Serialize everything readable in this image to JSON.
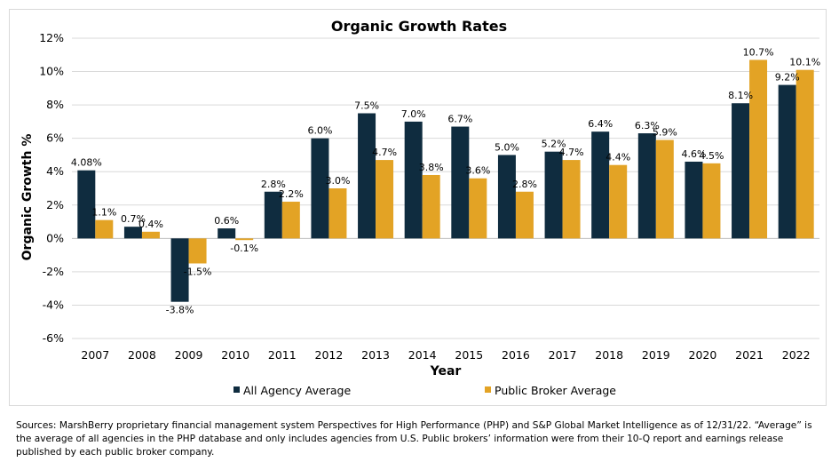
{
  "chart_data": {
    "type": "bar",
    "title": "Organic Growth Rates",
    "xlabel": "Year",
    "ylabel": "Organic Growth %",
    "ylim": [
      -6,
      12
    ],
    "ytick_step": 2,
    "ytick_format": "percent",
    "grid": "horizontal",
    "legend_position": "bottom",
    "categories": [
      "2007",
      "2008",
      "2009",
      "2010",
      "2011",
      "2012",
      "2013",
      "2014",
      "2015",
      "2016",
      "2017",
      "2018",
      "2019",
      "2020",
      "2021",
      "2022"
    ],
    "series": [
      {
        "name": "All Agency Average",
        "color": "#0f2c3f",
        "values": [
          4.08,
          0.7,
          -3.8,
          0.6,
          2.8,
          6.0,
          7.5,
          7.0,
          6.7,
          5.0,
          5.2,
          6.4,
          6.3,
          4.6,
          8.1,
          9.2
        ],
        "labels": [
          "4.08%",
          "0.7%",
          "-3.8%",
          "0.6%",
          "2.8%",
          "6.0%",
          "7.5%",
          "7.0%",
          "6.7%",
          "5.0%",
          "5.2%",
          "6.4%",
          "6.3%",
          "4.6%",
          "8.1%",
          "9.2%"
        ]
      },
      {
        "name": "Public Broker Average",
        "color": "#e3a325",
        "values": [
          1.1,
          0.4,
          -1.5,
          -0.1,
          2.2,
          3.0,
          4.7,
          3.8,
          3.6,
          2.8,
          4.7,
          4.4,
          5.9,
          4.5,
          10.7,
          10.1
        ],
        "labels": [
          "1.1%",
          "0.4%",
          "-1.5%",
          "-0.1%",
          "2.2%",
          "3.0%",
          "4.7%",
          "3.8%",
          "3.6%",
          "2.8%",
          "4.7%",
          "4.4%",
          "5.9%",
          "4.5%",
          "10.7%",
          "10.1%"
        ]
      }
    ]
  },
  "sources": "Sources:  MarshBerry proprietary financial management system Perspectives for High Performance (PHP) and S&P Global Market Intelligence as of 12/31/22. “Average” is the average of all agencies in the PHP database and only includes agencies from U.S.  Public brokers’ information were from their 10-Q report and earnings release published by each public broker company."
}
